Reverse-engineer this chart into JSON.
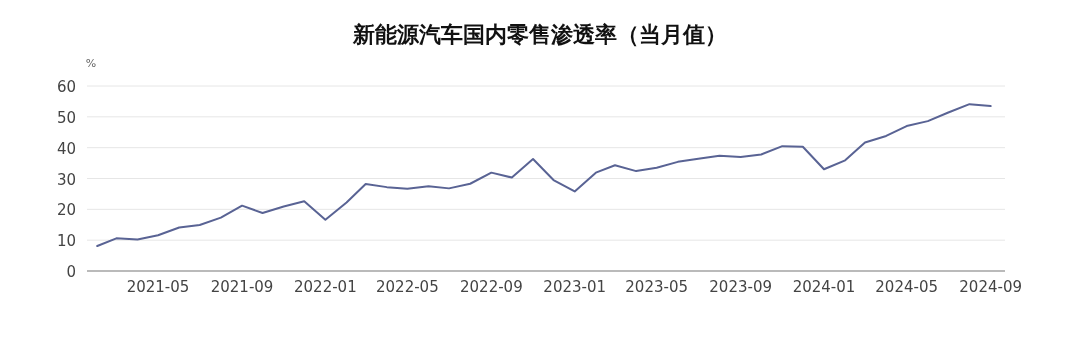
{
  "chart_data": {
    "type": "line",
    "title": "新能源汽车国内零售渗透率（当月值）",
    "ylabel": "%",
    "x": [
      "2021-02",
      "2021-03",
      "2021-04",
      "2021-05",
      "2021-06",
      "2021-07",
      "2021-08",
      "2021-09",
      "2021-10",
      "2021-11",
      "2021-12",
      "2022-01",
      "2022-02",
      "2022-03",
      "2022-04",
      "2022-05",
      "2022-06",
      "2022-07",
      "2022-08",
      "2022-09",
      "2022-10",
      "2022-11",
      "2022-12",
      "2023-01",
      "2023-02",
      "2023-03",
      "2023-04",
      "2023-05",
      "2023-06",
      "2023-07",
      "2023-08",
      "2023-09",
      "2023-10",
      "2023-11",
      "2023-12",
      "2024-01",
      "2024-02",
      "2024-03",
      "2024-04",
      "2024-05",
      "2024-06",
      "2024-07",
      "2024-08",
      "2024-09"
    ],
    "series": [
      {
        "color": "#596394",
        "values": [
          8.1,
          10.6,
          10.2,
          11.6,
          14.1,
          14.9,
          17.3,
          21.2,
          18.8,
          20.9,
          22.6,
          16.6,
          22.2,
          28.2,
          27.2,
          26.7,
          27.5,
          26.8,
          28.3,
          31.9,
          30.3,
          36.3,
          29.5,
          25.8,
          31.9,
          34.3,
          32.4,
          33.5,
          35.4,
          36.4,
          37.4,
          37.0,
          37.8,
          40.5,
          40.3,
          33.0,
          35.9,
          41.7,
          43.8,
          47.0,
          48.6,
          51.4,
          54.1,
          53.5
        ]
      }
    ],
    "xlim": [
      "2021-01-17",
      "2024-09-22"
    ],
    "xticks": [
      "2021-05",
      "2021-09",
      "2022-01",
      "2022-05",
      "2022-09",
      "2023-01",
      "2023-05",
      "2023-09",
      "2024-01",
      "2024-05",
      "2024-09"
    ],
    "ylim": [
      0,
      60
    ],
    "yticks": [
      0,
      10,
      20,
      30,
      40,
      50,
      60
    ],
    "grid": "y",
    "marker": "none",
    "line_style": "solid"
  }
}
